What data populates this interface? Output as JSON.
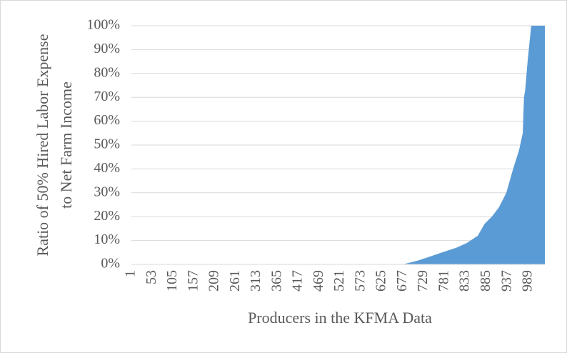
{
  "chart_data": {
    "type": "area",
    "x_label": "Producers in the KFMA Data",
    "y_label": [
      "Ratio of 50% Hired Labor Expense",
      "to Net Farm Income"
    ],
    "x": [
      1,
      676,
      712,
      739,
      765,
      774,
      810,
      836,
      845,
      863,
      880,
      898,
      916,
      925,
      934,
      951,
      966,
      975,
      978,
      981,
      987,
      996,
      1030
    ],
    "values": [
      0,
      0,
      1.5,
      3,
      4.5,
      5,
      7,
      9,
      10,
      12,
      17,
      20,
      24,
      27,
      30,
      40,
      48,
      55,
      70,
      73,
      85,
      100,
      100
    ],
    "color": "#5b9bd5",
    "xlim": [
      1,
      1030
    ],
    "xticks": [
      1,
      53,
      105,
      157,
      209,
      261,
      313,
      365,
      417,
      469,
      521,
      573,
      625,
      677,
      729,
      781,
      833,
      885,
      937,
      989
    ],
    "ylim": [
      0,
      100
    ],
    "yticks": [
      {
        "value": 0,
        "label": "0%"
      },
      {
        "value": 10,
        "label": "10%"
      },
      {
        "value": 20,
        "label": "20%"
      },
      {
        "value": 30,
        "label": "30%"
      },
      {
        "value": 40,
        "label": "40%"
      },
      {
        "value": 50,
        "label": "50%"
      },
      {
        "value": 60,
        "label": "60%"
      },
      {
        "value": 70,
        "label": "70%"
      },
      {
        "value": 80,
        "label": "80%"
      },
      {
        "value": 90,
        "label": "90%"
      },
      {
        "value": 100,
        "label": "100%"
      }
    ],
    "grid": true
  }
}
